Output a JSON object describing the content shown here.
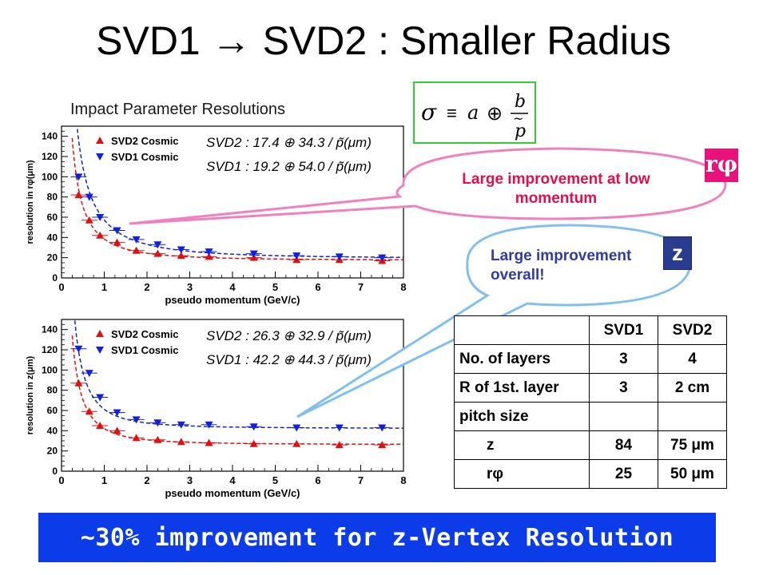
{
  "slide": {
    "title_a": "SVD1",
    "title_arrow": "→",
    "title_b": "SVD2 : Smaller Radius",
    "plot_heading": "Impact Parameter Resolutions"
  },
  "formula": {
    "sigma": "σ",
    "equiv": "≡",
    "a": "a",
    "oplus": "⊕",
    "b": "b",
    "p": "p",
    "tilde": "~"
  },
  "colors": {
    "svd2": "#e01010",
    "svd1": "#1020e0",
    "rphi_badge": "#e8137a",
    "z_badge": "#2a3c8f",
    "bubble_pink": "#f080c0",
    "bubble_blue": "#80c0f0",
    "formula_border": "#33cc33",
    "banner": "#0b3ce8"
  },
  "callouts": {
    "rphi_text": "Large improvement at low momentum",
    "rphi_badge": "rφ",
    "z_text": "Large improvement overall!",
    "z_badge": "z"
  },
  "table": {
    "headers": [
      "",
      "SVD1",
      "SVD2"
    ],
    "rows": [
      {
        "label": "No. of layers",
        "svd1": "3",
        "svd2": "4",
        "indent": false
      },
      {
        "label": "R of 1st. layer",
        "svd1": "3",
        "svd2": "2 cm",
        "indent": false
      },
      {
        "label": "pitch size",
        "svd1": "",
        "svd2": "",
        "indent": false
      },
      {
        "label": "z",
        "svd1": "84",
        "svd2": "75 μm",
        "indent": true
      },
      {
        "label": "rφ",
        "svd1": "25",
        "svd2": "50 μm",
        "indent": true
      }
    ]
  },
  "banner": {
    "text": "~30% improvement for z-Vertex Resolution"
  },
  "chart_data": [
    {
      "type": "scatter",
      "xlabel": "pseudo momentum (GeV/c)",
      "ylabel": "resolution in rφ(μm)",
      "xlim": [
        0,
        8
      ],
      "ylim": [
        0,
        150
      ],
      "xticks": [
        "0",
        "1",
        "2",
        "3",
        "4",
        "5",
        "6",
        "7",
        "8"
      ],
      "yticks": [
        "0",
        "20",
        "40",
        "60",
        "80",
        "100",
        "120",
        "140"
      ],
      "legend_position": "top-left",
      "formulas": {
        "svd2": "SVD2 : 17.4 ⊕ 34.3 / p̃(μm)",
        "svd1": "SVD1 : 19.2 ⊕ 54.0 / p̃(μm)"
      },
      "series": [
        {
          "name": "SVD2 Cosmic",
          "marker": "triangle-up",
          "color": "#e01010",
          "fit": {
            "a": 17.4,
            "b": 34.3
          },
          "x": [
            0.4,
            0.65,
            0.9,
            1.3,
            1.75,
            2.25,
            2.8,
            3.45,
            4.5,
            5.5,
            6.5,
            7.5
          ],
          "y": [
            82,
            57,
            42,
            35,
            27,
            24,
            22,
            21,
            20,
            18,
            18,
            17
          ]
        },
        {
          "name": "SVD1 Cosmic",
          "marker": "triangle-down",
          "color": "#1020e0",
          "fit": {
            "a": 19.2,
            "b": 54.0
          },
          "x": [
            0.4,
            0.65,
            0.9,
            1.3,
            1.75,
            2.25,
            2.8,
            3.45,
            4.5,
            5.5,
            6.5,
            7.5
          ],
          "y": [
            100,
            80,
            60,
            47,
            38,
            33,
            28,
            26,
            24,
            22,
            21,
            20
          ]
        }
      ]
    },
    {
      "type": "scatter",
      "xlabel": "pseudo momentum (GeV/c)",
      "ylabel": "resolution in z(μm)",
      "xlim": [
        0,
        8
      ],
      "ylim": [
        0,
        150
      ],
      "xticks": [
        "0",
        "1",
        "2",
        "3",
        "4",
        "5",
        "6",
        "7",
        "8"
      ],
      "yticks": [
        "0",
        "20",
        "40",
        "60",
        "80",
        "100",
        "120",
        "140"
      ],
      "legend_position": "top-left",
      "formulas": {
        "svd2": "SVD2 : 26.3 ⊕ 32.9 / p̃(μm)",
        "svd1": "SVD1 : 42.2 ⊕ 44.3 / p̃(μm)"
      },
      "series": [
        {
          "name": "SVD2 Cosmic",
          "marker": "triangle-up",
          "color": "#e01010",
          "fit": {
            "a": 26.3,
            "b": 32.9
          },
          "x": [
            0.4,
            0.65,
            0.9,
            1.3,
            1.75,
            2.25,
            2.8,
            3.45,
            4.5,
            5.5,
            6.5,
            7.5
          ],
          "y": [
            87,
            59,
            45,
            40,
            33,
            31,
            29,
            28,
            27,
            27,
            26,
            26
          ]
        },
        {
          "name": "SVD1 Cosmic",
          "marker": "triangle-down",
          "color": "#1020e0",
          "fit": {
            "a": 42.2,
            "b": 44.3
          },
          "x": [
            0.4,
            0.65,
            0.9,
            1.3,
            1.75,
            2.25,
            2.8,
            3.45,
            4.5,
            5.5,
            6.5,
            7.5
          ],
          "y": [
            121,
            97,
            73,
            58,
            51,
            48,
            46,
            46,
            44,
            43,
            43,
            43
          ]
        }
      ]
    }
  ]
}
